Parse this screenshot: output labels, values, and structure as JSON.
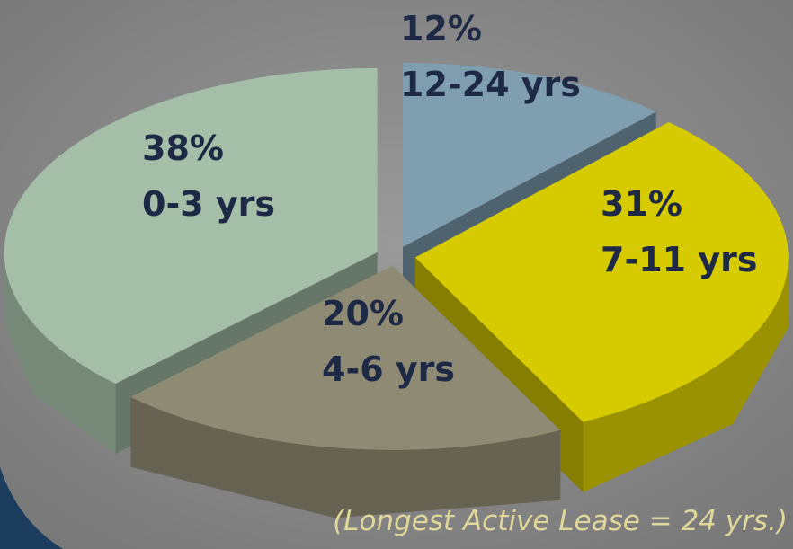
{
  "chart_data": {
    "type": "pie",
    "categories": [
      "12-24 yrs",
      "7-11 yrs",
      "4-6 yrs",
      "0-3 yrs"
    ],
    "values": [
      12,
      31,
      20,
      38
    ],
    "value_labels": [
      "12%",
      "31%",
      "20%",
      "38%"
    ],
    "colors": [
      "#7f9fb1",
      "#d6cb00",
      "#8e8a73",
      "#a4bea7"
    ],
    "annotation": "(Longest Active Lease = 24 yrs.)"
  }
}
